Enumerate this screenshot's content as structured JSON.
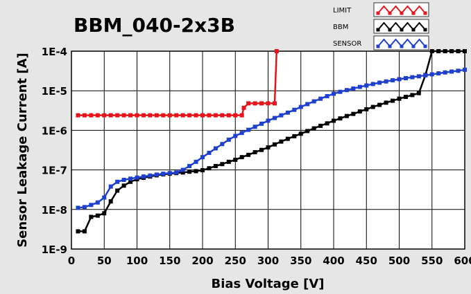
{
  "chart_data": {
    "type": "line",
    "title": "BBM_040-2x3B",
    "xlabel": "Bias Voltage [V]",
    "ylabel": "Sensor Leakage Current [A]",
    "xlim": [
      0,
      600
    ],
    "ylim": [
      1e-09,
      0.0001
    ],
    "y_scale": "log",
    "grid": true,
    "legend_position": "top-right",
    "x_ticks": [
      0,
      50,
      100,
      150,
      200,
      250,
      300,
      350,
      400,
      450,
      500,
      550,
      600
    ],
    "x_tick_labels": [
      "0",
      "50",
      "100",
      "150",
      "200",
      "250",
      "300",
      "350",
      "400",
      "450",
      "500",
      "550",
      "600"
    ],
    "y_ticks": [
      0.0001,
      1e-05,
      1e-06,
      1e-07,
      1e-08,
      1e-09
    ],
    "y_tick_labels": [
      "1E-4",
      "1E-5",
      "1E-6",
      "1E-7",
      "1E-8",
      "1E-9"
    ],
    "series": [
      {
        "name": "LIMIT",
        "color": "#e8141b",
        "x": [
          10,
          20,
          30,
          40,
          50,
          60,
          70,
          80,
          90,
          100,
          110,
          120,
          130,
          140,
          150,
          160,
          170,
          180,
          190,
          200,
          210,
          220,
          230,
          240,
          250,
          260,
          263,
          270,
          280,
          290,
          300,
          310,
          313
        ],
        "y": [
          2.4e-06,
          2.4e-06,
          2.4e-06,
          2.4e-06,
          2.4e-06,
          2.4e-06,
          2.4e-06,
          2.4e-06,
          2.4e-06,
          2.4e-06,
          2.4e-06,
          2.4e-06,
          2.4e-06,
          2.4e-06,
          2.4e-06,
          2.4e-06,
          2.4e-06,
          2.4e-06,
          2.4e-06,
          2.4e-06,
          2.4e-06,
          2.4e-06,
          2.4e-06,
          2.4e-06,
          2.4e-06,
          2.4e-06,
          3.7e-06,
          4.8e-06,
          4.8e-06,
          4.8e-06,
          4.8e-06,
          4.8e-06,
          0.0001
        ]
      },
      {
        "name": "BBM",
        "color": "#000000",
        "x": [
          10,
          20,
          30,
          40,
          50,
          60,
          70,
          80,
          90,
          100,
          110,
          120,
          130,
          140,
          150,
          160,
          170,
          180,
          190,
          200,
          210,
          220,
          230,
          240,
          250,
          260,
          270,
          280,
          290,
          300,
          310,
          320,
          330,
          340,
          350,
          360,
          370,
          380,
          390,
          400,
          410,
          420,
          430,
          440,
          450,
          460,
          470,
          480,
          490,
          500,
          510,
          520,
          530,
          540,
          550,
          560,
          570,
          580,
          590,
          600
        ],
        "y": [
          2.8e-09,
          2.8e-09,
          6.5e-09,
          7e-09,
          8e-09,
          1.6e-08,
          3e-08,
          4e-08,
          5e-08,
          5.8e-08,
          6.3e-08,
          6.8e-08,
          7.3e-08,
          7.7e-08,
          8e-08,
          8.3e-08,
          8.6e-08,
          9e-08,
          9.3e-08,
          9.8e-08,
          1.1e-07,
          1.25e-07,
          1.4e-07,
          1.6e-07,
          1.8e-07,
          2.1e-07,
          2.4e-07,
          2.8e-07,
          3.2e-07,
          3.7e-07,
          4.4e-07,
          5.2e-07,
          6.1e-07,
          7.1e-07,
          8.2e-07,
          9.6e-07,
          1.12e-06,
          1.3e-06,
          1.5e-06,
          1.75e-06,
          2e-06,
          2.3e-06,
          2.6e-06,
          3e-06,
          3.4e-06,
          3.9e-06,
          4.4e-06,
          5e-06,
          5.6e-06,
          6.3e-06,
          7e-06,
          7.8e-06,
          8.7e-06,
          2.5e-05,
          0.0001,
          0.0001,
          0.0001,
          0.0001,
          0.0001,
          0.0001
        ]
      },
      {
        "name": "SENSOR",
        "color": "#1f3fcf",
        "x": [
          10,
          20,
          30,
          40,
          50,
          60,
          70,
          80,
          90,
          100,
          110,
          120,
          130,
          140,
          150,
          160,
          170,
          180,
          190,
          200,
          210,
          220,
          230,
          240,
          250,
          260,
          270,
          280,
          290,
          300,
          310,
          320,
          330,
          340,
          350,
          360,
          370,
          380,
          390,
          400,
          410,
          420,
          430,
          440,
          450,
          460,
          470,
          480,
          490,
          500,
          510,
          520,
          530,
          540,
          550,
          560,
          570,
          580,
          590,
          600
        ],
        "y": [
          1.1e-08,
          1.15e-08,
          1.3e-08,
          1.5e-08,
          2e-08,
          3.8e-08,
          5e-08,
          5.6e-08,
          6e-08,
          6.4e-08,
          6.8e-08,
          7.2e-08,
          7.6e-08,
          8e-08,
          8.3e-08,
          8.6e-08,
          1e-07,
          1.25e-07,
          1.6e-07,
          2.1e-07,
          2.7e-07,
          3.5e-07,
          4.5e-07,
          5.8e-07,
          7.2e-07,
          8.6e-07,
          1.03e-06,
          1.23e-06,
          1.47e-06,
          1.75e-06,
          2.05e-06,
          2.4e-06,
          2.8e-06,
          3.3e-06,
          3.9e-06,
          4.6e-06,
          5.4e-06,
          6.3e-06,
          7.3e-06,
          8.4e-06,
          9.4e-06,
          1.04e-05,
          1.14e-05,
          1.25e-05,
          1.36e-05,
          1.48e-05,
          1.6e-05,
          1.72e-05,
          1.84e-05,
          1.96e-05,
          2.08e-05,
          2.2e-05,
          2.32e-05,
          2.45e-05,
          2.6e-05,
          2.75e-05,
          2.9e-05,
          3.05e-05,
          3.2e-05,
          3.4e-05
        ]
      }
    ]
  }
}
